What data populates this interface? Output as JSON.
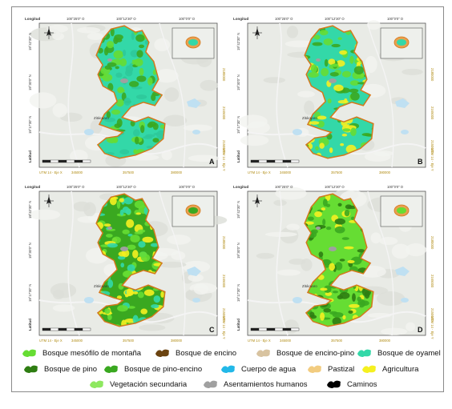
{
  "panels": [
    {
      "letter": "A",
      "variant": 0
    },
    {
      "letter": "B",
      "variant": 1
    },
    {
      "letter": "C",
      "variant": 2
    },
    {
      "letter": "D",
      "variant": 3
    }
  ],
  "axes": {
    "top_corner": "Longitud",
    "left_corner": "Latitud",
    "top_ticks": [
      "100°25'0\" O",
      "100°12'30\" O",
      "100°0'0\" O"
    ],
    "left_ticks": [
      "19°42'30\" N",
      "19°30'0\" N",
      "19°17'30\" N"
    ],
    "right_ticks": [
      "2180000",
      "2165000",
      "2150000"
    ],
    "bottom_utm": "UTM 14 - Eje X",
    "bottom_ticks": [
      "345000",
      "357500",
      "380000"
    ],
    "right_utm": "UTM 14 - Eje Y",
    "city_label": "Zitácuaro"
  },
  "legend": [
    {
      "label": "Bosque mesófilo de montaña",
      "color": "#66dd33"
    },
    {
      "label": "Bosque de encino",
      "color": "#6b4310"
    },
    {
      "label": "Bosque de encino-pino",
      "color": "#d8c3a0"
    },
    {
      "label": "Bosque de oyamel",
      "color": "#33d8a8"
    },
    {
      "label": "Bosque de pino",
      "color": "#2e7d12"
    },
    {
      "label": "Bosque de pino-encino",
      "color": "#3aa820"
    },
    {
      "label": "Cuerpo de agua",
      "color": "#22b8e8"
    },
    {
      "label": "Pastizal",
      "color": "#f2cc80"
    },
    {
      "label": "Agricultura",
      "color": "#f5f020"
    },
    {
      "label": "Vegetación secundaria",
      "color": "#8ee860"
    },
    {
      "label": "Asentamientos humanos",
      "color": "#a0a0a0"
    },
    {
      "label": "Caminos",
      "color": "#000000"
    }
  ]
}
